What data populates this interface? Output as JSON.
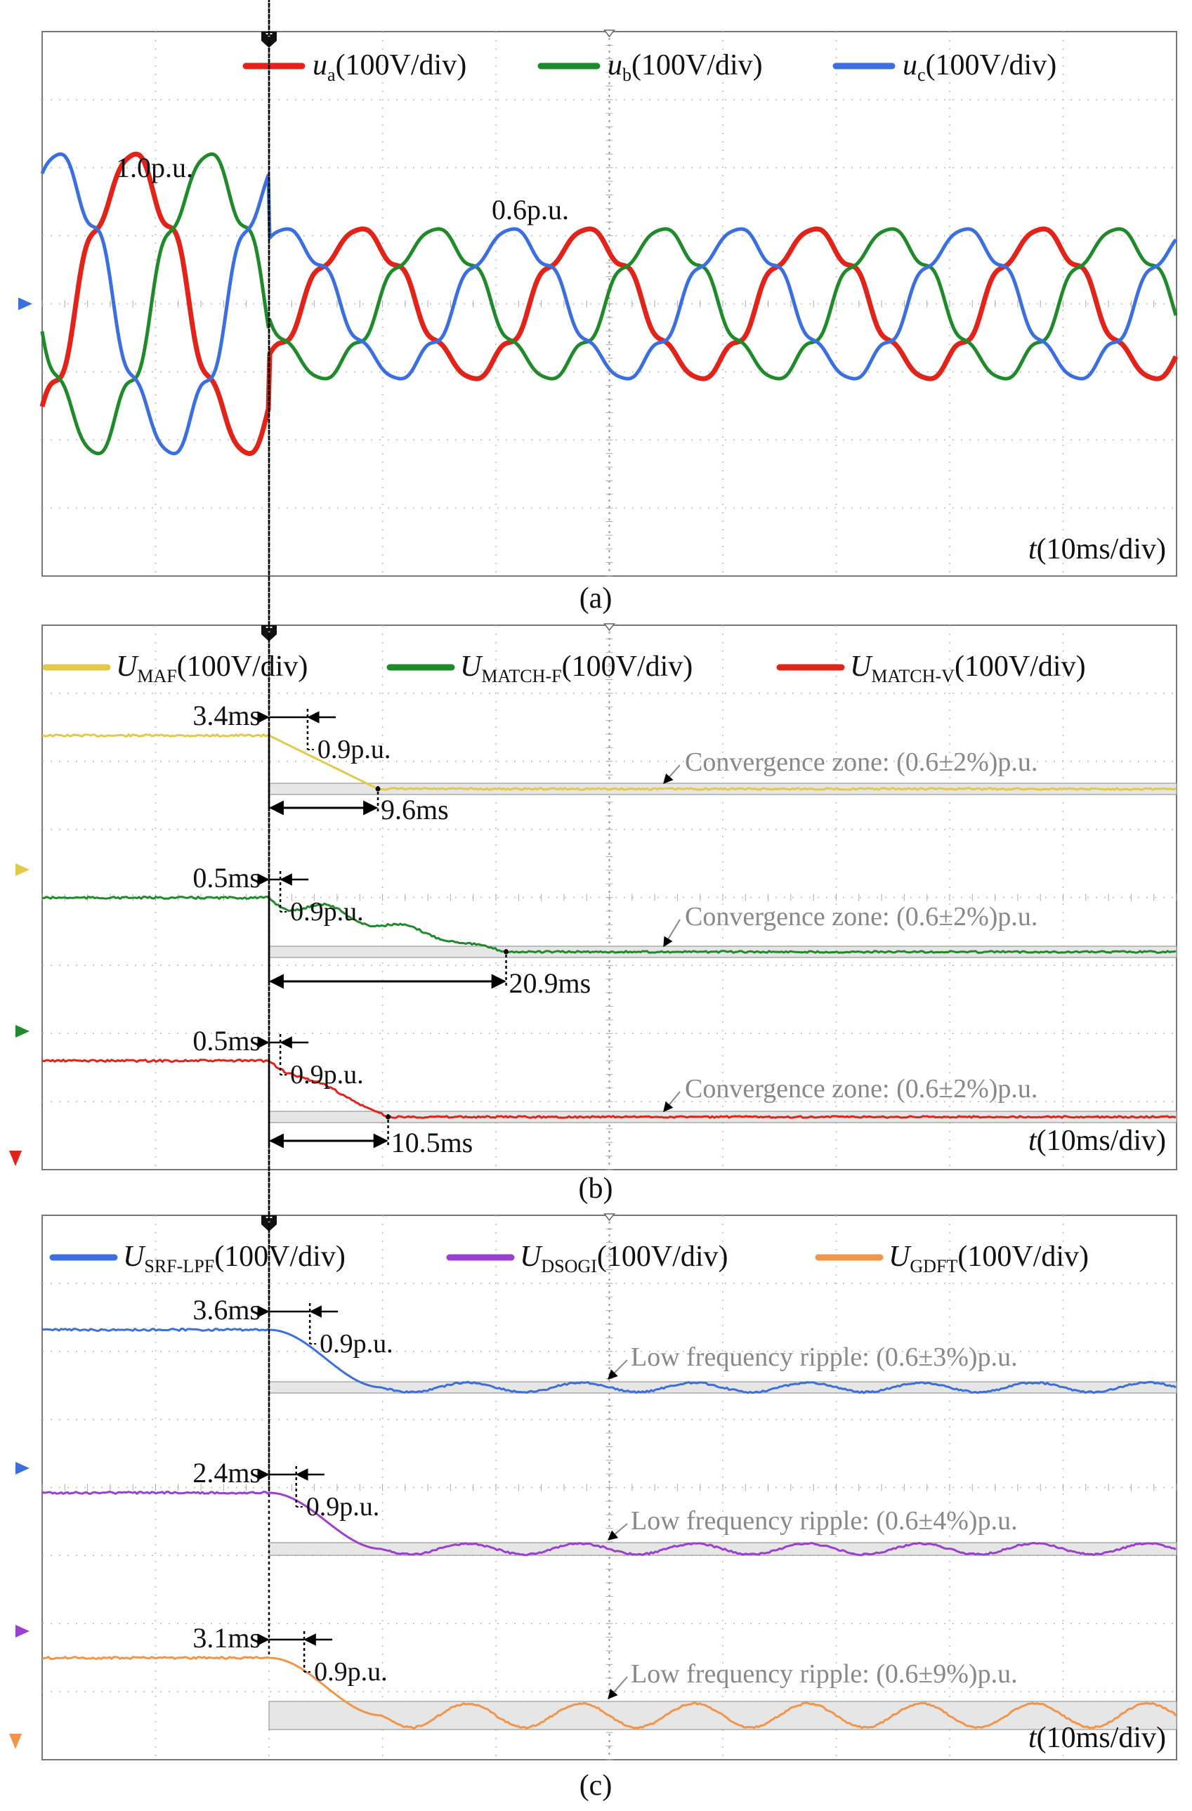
{
  "figure": {
    "panels": [
      {
        "id": "a",
        "caption": "(a)",
        "time_label": {
          "symbol": "t",
          "unit": "(10ms/div)"
        },
        "legend": [
          {
            "symbol": "u",
            "sub": "a",
            "unit": "(100V/div)",
            "color": "#e2231a"
          },
          {
            "symbol": "u",
            "sub": "b",
            "unit": "(100V/div)",
            "color": "#1f8a2a"
          },
          {
            "symbol": "u",
            "sub": "c",
            "unit": "(100V/div)",
            "color": "#3b6fdf"
          }
        ],
        "annotations": [
          "1.0p.u.",
          "0.6p.u."
        ]
      },
      {
        "id": "b",
        "caption": "(b)",
        "time_label": {
          "symbol": "t",
          "unit": "(10ms/div)"
        },
        "legend": [
          {
            "symbol": "U",
            "sub": "MAF",
            "unit": "(100V/div)",
            "color": "#e3c94a"
          },
          {
            "symbol": "U",
            "sub": "MATCH-F",
            "unit": "(100V/div)",
            "color": "#1f8a2a"
          },
          {
            "symbol": "U",
            "sub": "MATCH-V",
            "unit": "(100V/div)",
            "color": "#e2231a"
          }
        ],
        "traces": [
          {
            "delay": "3.4ms",
            "drop": "0.9p.u.",
            "settle": "9.6ms",
            "zone": "Convergence zone: (0.6±2%)p.u."
          },
          {
            "delay": "0.5ms",
            "drop": "0.9p.u.",
            "settle": "20.9ms",
            "zone": "Convergence zone: (0.6±2%)p.u."
          },
          {
            "delay": "0.5ms",
            "drop": "0.9p.u.",
            "settle": "10.5ms",
            "zone": "Convergence zone: (0.6±2%)p.u."
          }
        ]
      },
      {
        "id": "c",
        "caption": "(c)",
        "time_label": {
          "symbol": "t",
          "unit": "(10ms/div)"
        },
        "legend": [
          {
            "symbol": "U",
            "sub": "SRF-LPF",
            "unit": "(100V/div)",
            "color": "#3b6fdf"
          },
          {
            "symbol": "U",
            "sub": "DSOGI",
            "unit": "(100V/div)",
            "color": "#9b3fd1"
          },
          {
            "symbol": "U",
            "sub": "GDFT",
            "unit": "(100V/div)",
            "color": "#f0954a"
          }
        ],
        "traces": [
          {
            "delay": "3.6ms",
            "drop": "0.9p.u.",
            "ripple": "Low frequency ripple: (0.6±3%)p.u."
          },
          {
            "delay": "2.4ms",
            "drop": "0.9p.u.",
            "ripple": "Low frequency ripple: (0.6±4%)p.u."
          },
          {
            "delay": "3.1ms",
            "drop": "0.9p.u.",
            "ripple": "Low frequency ripple: (0.6±9%)p.u."
          }
        ]
      }
    ]
  },
  "chart_data": [
    {
      "type": "line",
      "panel": "a",
      "description_values": {
        "x_divisions": 10,
        "y_divisions": 8,
        "time_per_div_ms": 10,
        "fault_time_ms": 20,
        "frequency_hz": 50,
        "amplitude_before_pu": 1.0,
        "amplitude_after_pu": 0.6
      },
      "series": [
        {
          "name": "ua",
          "phase_deg": 0
        },
        {
          "name": "ub",
          "phase_deg": -120
        },
        {
          "name": "uc",
          "phase_deg": 120
        }
      ]
    },
    {
      "type": "line",
      "panel": "b",
      "description_values": {
        "x_divisions": 10,
        "fault_time_ms": 20,
        "before_pu": 1.0,
        "after_pu": 0.6
      },
      "series": [
        {
          "name": "UMAF",
          "detect_ms": 3.4,
          "settle_ms": 9.6,
          "band_pct": 2
        },
        {
          "name": "UMATCH-F",
          "detect_ms": 0.5,
          "settle_ms": 20.9,
          "band_pct": 2
        },
        {
          "name": "UMATCH-V",
          "detect_ms": 0.5,
          "settle_ms": 10.5,
          "band_pct": 2
        }
      ]
    },
    {
      "type": "line",
      "panel": "c",
      "description_values": {
        "x_divisions": 10,
        "fault_time_ms": 20,
        "before_pu": 1.0,
        "after_pu": 0.6
      },
      "series": [
        {
          "name": "USRF-LPF",
          "detect_ms": 3.6,
          "ripple_pct": 3
        },
        {
          "name": "UDSOGI",
          "detect_ms": 2.4,
          "ripple_pct": 4
        },
        {
          "name": "UGDFT",
          "detect_ms": 3.1,
          "ripple_pct": 9
        }
      ]
    }
  ]
}
